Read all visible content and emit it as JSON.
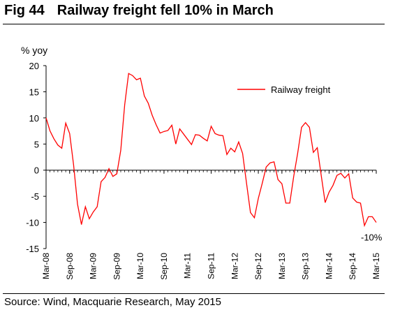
{
  "header": {
    "fig_number": "Fig 44",
    "title": "Railway freight fell 10% in March"
  },
  "footer": {
    "source": "Source: Wind, Macquarie Research, May 2015"
  },
  "colors": {
    "series": "#ff0000",
    "axis": "#000000"
  },
  "chart_data": {
    "type": "line",
    "title": "Railway freight fell 10% in March",
    "ylabel": "% yoy",
    "xlabel": "",
    "ylim": [
      -15,
      20
    ],
    "yticks": [
      20,
      15,
      10,
      5,
      0,
      -5,
      -10,
      -15
    ],
    "xtick_labels": [
      "Mar-08",
      "Sep-08",
      "Mar-09",
      "Sep-09",
      "Mar-10",
      "Sep-10",
      "Mar-11",
      "Sep-11",
      "Mar-12",
      "Sep-12",
      "Mar-13",
      "Sep-13",
      "Mar-14",
      "Sep-14",
      "Mar-15"
    ],
    "x_start": "Mar-08",
    "x_end": "Mar-15",
    "legend_position": "top-right",
    "grid": false,
    "series": [
      {
        "name": "Railway freight",
        "values": [
          10,
          7.5,
          6,
          4.8,
          4.2,
          9,
          7,
          1,
          -6.5,
          -10.4,
          -7,
          -9.3,
          -8,
          -7,
          -2.2,
          -1.4,
          0.3,
          -1.2,
          -0.7,
          3.8,
          12.5,
          18.5,
          18.1,
          17.3,
          17.6,
          14.2,
          12.8,
          10.5,
          8.7,
          7.1,
          7.4,
          7.6,
          8.6,
          5,
          7.9,
          6.9,
          5.9,
          4.9,
          6.8,
          6.7,
          6.1,
          5.6,
          8.4,
          7,
          6.7,
          6.6,
          3,
          4.2,
          3.5,
          5.4,
          3.2,
          -2.5,
          -8.1,
          -9.1,
          -5.4,
          -2.5,
          0.6,
          1.4,
          1.6,
          -1.8,
          -2.6,
          -6.3,
          -6.3,
          -1.2,
          3.2,
          8.2,
          9.1,
          8.2,
          3.4,
          4.3,
          -1,
          -6.2,
          -4.2,
          -2.9,
          -1,
          -0.6,
          -1.5,
          -0.7,
          -5.3,
          -6.1,
          -6.3,
          -10.6,
          -8.9,
          -8.9,
          -10
        ]
      }
    ],
    "annotations": [
      {
        "text": "-10%",
        "x": "Mar-15",
        "y": -10
      }
    ]
  }
}
